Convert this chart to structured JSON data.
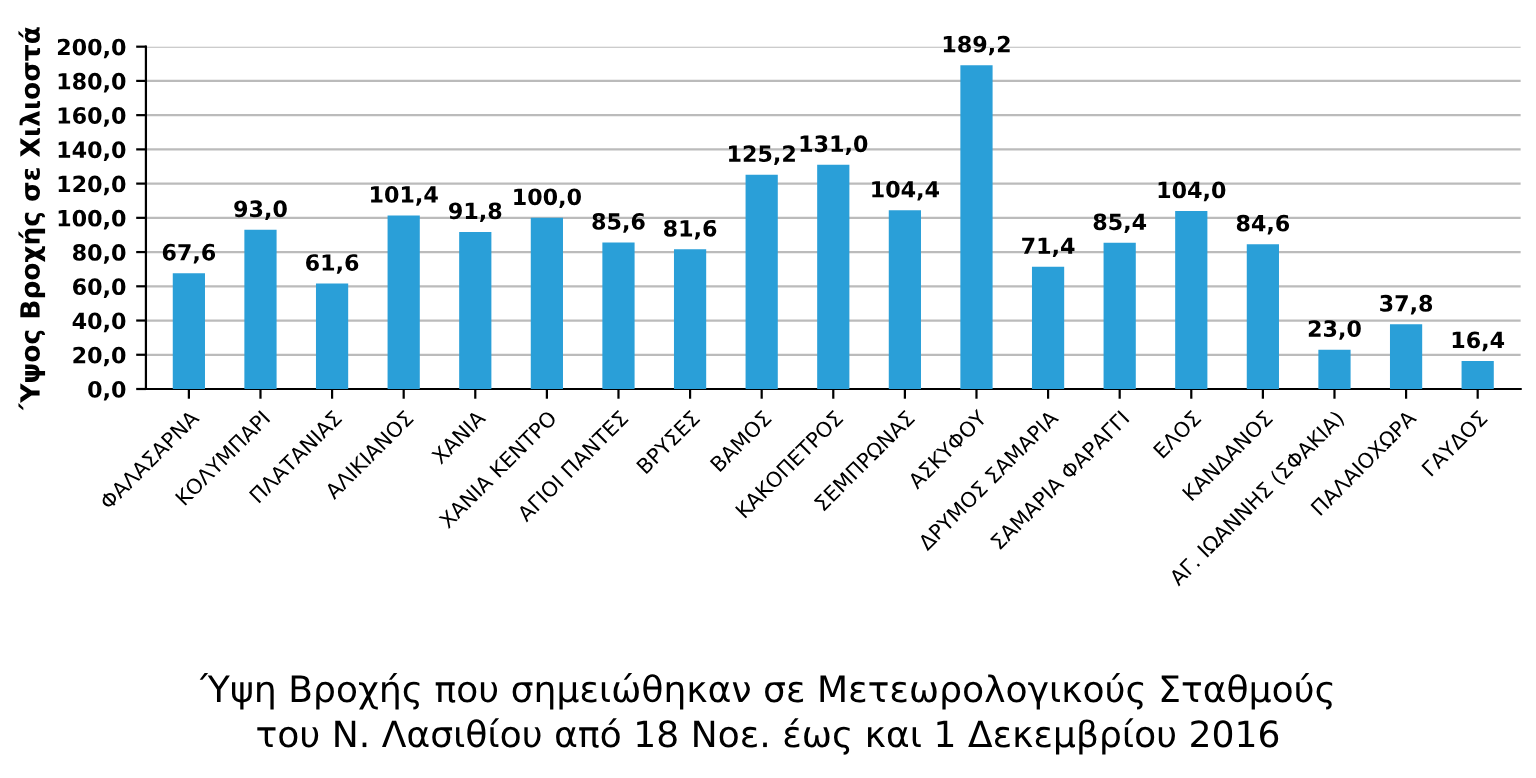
{
  "chart_data": {
    "type": "bar",
    "title": "Ύψη Βροχής που σημειώθηκαν σε Μετεωρολογικούς Σταθμούς\nτου Ν. Λασιθίου από 18 Νοε. έως και 1 Δεκεμβρίου 2016",
    "ylabel": "Ύψος Βροχής σε Χιλιοστά",
    "categories": [
      "ΦΑΛΑΣΑΡΝΑ",
      "ΚΟΛΥΜΠΑΡΙ",
      "ΠΛΑΤΑΝΙΑΣ",
      "ΑΛΙΚΙΑΝΟΣ",
      "ΧΑΝΙΑ",
      "ΧΑΝΙΑ ΚΕΝΤΡΟ",
      "ΑΓΙΟΙ ΠΑΝΤΕΣ",
      "ΒΡΥΣΕΣ",
      "ΒΑΜΟΣ",
      "ΚΑΚΟΠΕΤΡΟΣ",
      "ΣΕΜΠΡΩΝΑΣ",
      "ΑΣΚΥΦΟΥ",
      "ΔΡΥΜΟΣ ΣΑΜΑΡΙΑ",
      "ΣΑΜΑΡΙΑ ΦΑΡΑΓΓΙ",
      "ΕΛΟΣ",
      "ΚΑΝΔΑΝΟΣ",
      "ΑΓ. ΙΩΑΝΝΗΣ (ΣΦΑΚΙΑ)",
      "ΠΑΛΑΙΟΧΩΡΑ",
      "ΓΑΥΔΟΣ"
    ],
    "values": [
      67.6,
      93.0,
      61.6,
      101.4,
      91.8,
      100.0,
      85.6,
      81.6,
      125.2,
      131.0,
      104.4,
      189.2,
      71.4,
      85.4,
      104.0,
      84.6,
      23.0,
      37.8,
      16.4
    ],
    "value_labels": [
      "67,6",
      "93,0",
      "61,6",
      "101,4",
      "91,8",
      "100,0",
      "85,6",
      "81,6",
      "125,2",
      "131,0",
      "104,4",
      "189,2",
      "71,4",
      "85,4",
      "104,0",
      "84,6",
      "23,0",
      "37,8",
      "16,4"
    ],
    "color": "#2a9fd8",
    "ylim": [
      0,
      200
    ],
    "yticks": [
      {
        "value": 0,
        "label": "0,0"
      },
      {
        "value": 20,
        "label": "20,0"
      },
      {
        "value": 40,
        "label": "40,0"
      },
      {
        "value": 60,
        "label": "60,0"
      },
      {
        "value": 80,
        "label": "80,0"
      },
      {
        "value": 100,
        "label": "100,0"
      },
      {
        "value": 120,
        "label": "120,0"
      },
      {
        "value": 140,
        "label": "140,0"
      },
      {
        "value": 160,
        "label": "160,0"
      },
      {
        "value": 180,
        "label": "180,0"
      },
      {
        "value": 200,
        "label": "200,0"
      }
    ],
    "grid": "y",
    "legend": false
  }
}
